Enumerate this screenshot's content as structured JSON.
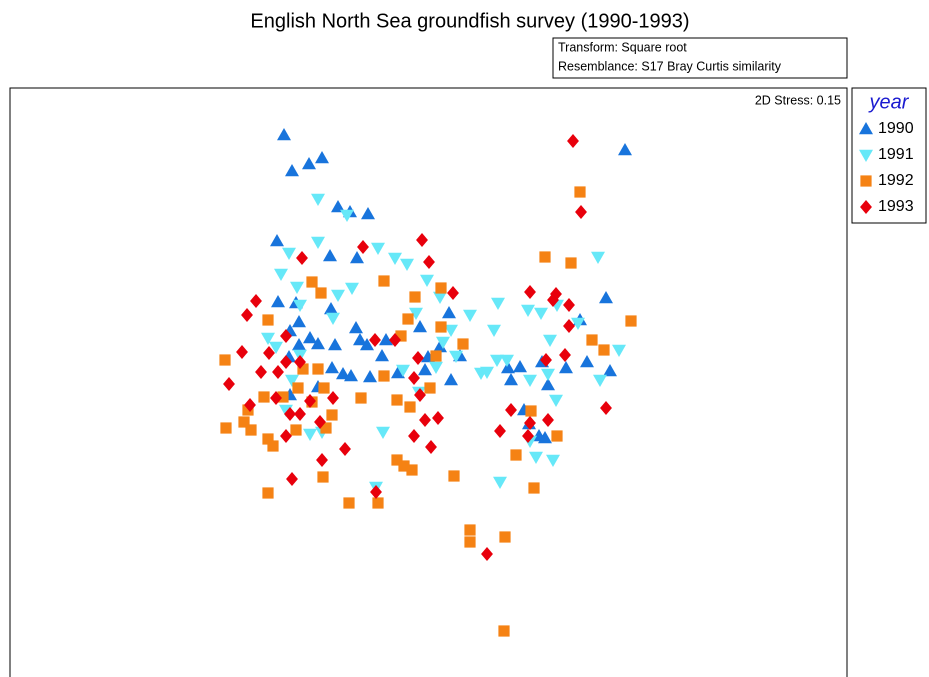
{
  "chart_data": {
    "type": "scatter",
    "title": "English North Sea groundfish survey (1990-1993)",
    "transform_note": "Transform: Square root",
    "resemblance_note": "Resemblance: S17 Bray Curtis similarity",
    "stress_note": "2D Stress: 0.15",
    "legend_title": "year",
    "xlim": [
      10,
      847
    ],
    "ylim": [
      0,
      589
    ],
    "series": [
      {
        "name": "1990",
        "color": "#1874dc",
        "marker": "triangle-up",
        "x": [
          284,
          292,
          309,
          322,
          338,
          350,
          368,
          277,
          330,
          357,
          278,
          296,
          331,
          290,
          299,
          310,
          318,
          335,
          356,
          360,
          367,
          386,
          318,
          343,
          351,
          370,
          332,
          382,
          398,
          420,
          428,
          449,
          451,
          425,
          508,
          511,
          520,
          542,
          548,
          539,
          545,
          566,
          580,
          587,
          606,
          610,
          625,
          289,
          299,
          290,
          440,
          460,
          524,
          529
        ],
        "values": [
          542,
          506,
          513,
          519,
          470,
          465,
          463,
          436,
          421,
          419,
          375,
          374,
          368,
          346,
          355,
          339,
          333,
          332,
          349,
          337,
          332,
          337,
          290,
          303,
          301,
          300,
          309,
          321,
          304,
          350,
          320,
          364,
          297,
          307,
          309,
          297,
          310,
          315,
          292,
          241,
          239,
          309,
          357,
          315,
          379,
          306,
          527,
          320,
          332,
          282,
          330,
          321,
          267,
          253
        ]
      },
      {
        "name": "1991",
        "color": "#66e8f8",
        "marker": "triangle-down",
        "x": [
          318,
          347,
          318,
          289,
          281,
          297,
          300,
          338,
          352,
          378,
          395,
          407,
          427,
          440,
          470,
          498,
          494,
          487,
          497,
          507,
          528,
          541,
          550,
          557,
          578,
          598,
          600,
          619,
          276,
          268,
          300,
          292,
          333,
          383,
          376,
          416,
          451,
          443,
          436,
          419,
          403,
          456,
          481,
          500,
          556,
          553,
          536,
          530,
          548,
          530,
          310,
          322,
          286
        ],
        "values": [
          478,
          462,
          435,
          424,
          403,
          390,
          372,
          382,
          389,
          429,
          419,
          413,
          397,
          380,
          362,
          374,
          347,
          305,
          317,
          317,
          367,
          364,
          337,
          372,
          354,
          420,
          297,
          327,
          330,
          339,
          322,
          297,
          359,
          245,
          190,
          364,
          347,
          335,
          310,
          285,
          307,
          321,
          304,
          195,
          277,
          217,
          220,
          236,
          303,
          297,
          243,
          245,
          267
        ]
      },
      {
        "name": "1992",
        "color": "#f58214",
        "marker": "square",
        "x": [
          580,
          545,
          571,
          312,
          321,
          384,
          415,
          441,
          225,
          268,
          408,
          441,
          401,
          436,
          463,
          592,
          604,
          631,
          226,
          248,
          251,
          264,
          283,
          268,
          273,
          298,
          296,
          326,
          312,
          318,
          303,
          324,
          361,
          384,
          397,
          410,
          430,
          397,
          404,
          412,
          454,
          323,
          349,
          378,
          268,
          470,
          470,
          505,
          504,
          516,
          534,
          557,
          531,
          244,
          332
        ],
        "values": [
          485,
          420,
          414,
          395,
          384,
          396,
          380,
          389,
          317,
          357,
          358,
          350,
          341,
          321,
          333,
          337,
          327,
          356,
          249,
          267,
          247,
          280,
          280,
          238,
          231,
          289,
          247,
          249,
          275,
          308,
          308,
          289,
          279,
          301,
          277,
          270,
          289,
          217,
          211,
          207,
          201,
          200,
          174,
          174,
          184,
          147,
          135,
          140,
          46,
          222,
          189,
          241,
          266,
          255,
          262
        ]
      },
      {
        "name": "1993",
        "color": "#e8000c",
        "marker": "diamond",
        "x": [
          573,
          581,
          363,
          302,
          422,
          429,
          453,
          256,
          247,
          242,
          229,
          261,
          250,
          269,
          278,
          286,
          300,
          286,
          276,
          290,
          286,
          292,
          322,
          300,
          310,
          320,
          345,
          333,
          375,
          395,
          418,
          414,
          420,
          425,
          438,
          414,
          431,
          376,
          530,
          553,
          556,
          569,
          569,
          546,
          565,
          500,
          511,
          528,
          530,
          548,
          606,
          487
        ],
        "values": [
          536,
          465,
          430,
          419,
          437,
          415,
          384,
          376,
          362,
          325,
          293,
          305,
          272,
          324,
          305,
          315,
          315,
          341,
          279,
          263,
          241,
          198,
          217,
          263,
          276,
          255,
          228,
          279,
          337,
          337,
          319,
          299,
          282,
          257,
          259,
          241,
          230,
          185,
          385,
          377,
          383,
          372,
          351,
          317,
          322,
          246,
          267,
          241,
          254,
          257,
          269,
          123
        ]
      }
    ]
  }
}
